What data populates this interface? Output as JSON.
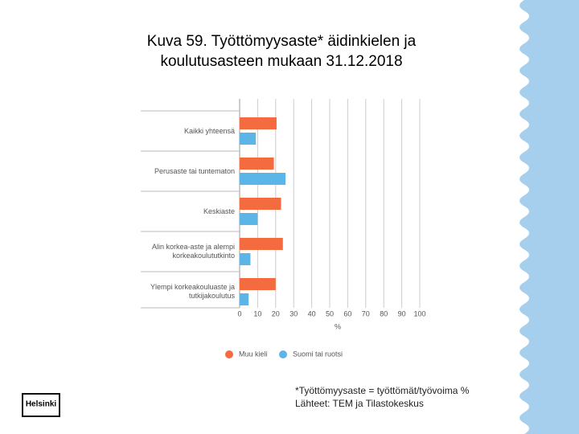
{
  "title_lines": [
    "Kuva 59. Työttömyysaste* äidinkielen ja",
    "koulutusasteen mukaan 31.12.2018"
  ],
  "chart_data": {
    "type": "hbar",
    "categories": [
      "Kaikki yhteensä",
      "Perusaste tai tuntematon",
      "Keskiaste",
      "Alin korkea-aste ja alempi korkeakoulututkinto",
      "Ylempi korkeakouluaste ja tutkijakoulutus"
    ],
    "series": [
      {
        "name": "Muu kieli",
        "color": "#f36b3f",
        "values": [
          20.5,
          19,
          23,
          24,
          20
        ]
      },
      {
        "name": "Suomi tai ruotsi",
        "color": "#5bb5e6",
        "values": [
          9,
          25.5,
          10,
          6,
          5
        ]
      }
    ],
    "xlim": [
      0,
      100
    ],
    "xticks": [
      0,
      10,
      20,
      30,
      40,
      50,
      60,
      70,
      80,
      90,
      100
    ],
    "xlabel": "%",
    "grid": true,
    "legend": "bottom"
  },
  "footnotes": [
    "*Työttömyysaste = työttömät/työvoima %",
    "Lähteet: TEM ja Tilastokeskus"
  ],
  "logo": "Helsinki"
}
